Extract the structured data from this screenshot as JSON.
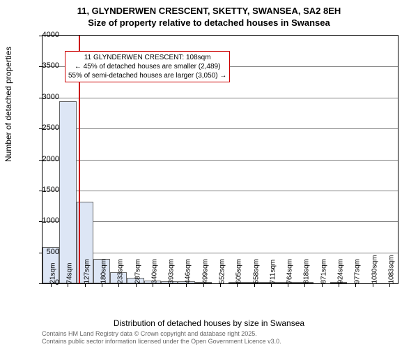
{
  "title_line1": "11, GLYNDERWEN CRESCENT, SKETTY, SWANSEA, SA2 8EH",
  "title_line2": "Size of property relative to detached houses in Swansea",
  "y_axis_label": "Number of detached properties",
  "x_axis_label": "Distribution of detached houses by size in Swansea",
  "chart": {
    "type": "histogram",
    "ylim": [
      0,
      4000
    ],
    "ytick_step": 500,
    "yticks": [
      0,
      500,
      1000,
      1500,
      2000,
      2500,
      3000,
      3500,
      4000
    ],
    "x_categories": [
      "21sqm",
      "74sqm",
      "127sqm",
      "180sqm",
      "233sqm",
      "287sqm",
      "340sqm",
      "393sqm",
      "446sqm",
      "499sqm",
      "552sqm",
      "605sqm",
      "658sqm",
      "711sqm",
      "764sqm",
      "818sqm",
      "871sqm",
      "924sqm",
      "977sqm",
      "1030sqm",
      "1083sqm"
    ],
    "bar_values": [
      590,
      2940,
      1320,
      400,
      180,
      90,
      50,
      30,
      30,
      20,
      0,
      10,
      10,
      10,
      10,
      10,
      0,
      10,
      0,
      0,
      0
    ],
    "bar_fill": "#dde6f5",
    "bar_stroke": "#666666",
    "grid_color": "#808080",
    "background_color": "#ffffff",
    "marker_x_value": 108,
    "marker_color": "#cc0000"
  },
  "annotation": {
    "line1": "11 GLYNDERWEN CRESCENT: 108sqm",
    "line2": "← 45% of detached houses are smaller (2,489)",
    "line3": "55% of semi-detached houses are larger (3,050) →",
    "border_color": "#cc0000"
  },
  "footer_line1": "Contains HM Land Registry data © Crown copyright and database right 2025.",
  "footer_line2": "Contains public sector information licensed under the Open Government Licence v3.0."
}
